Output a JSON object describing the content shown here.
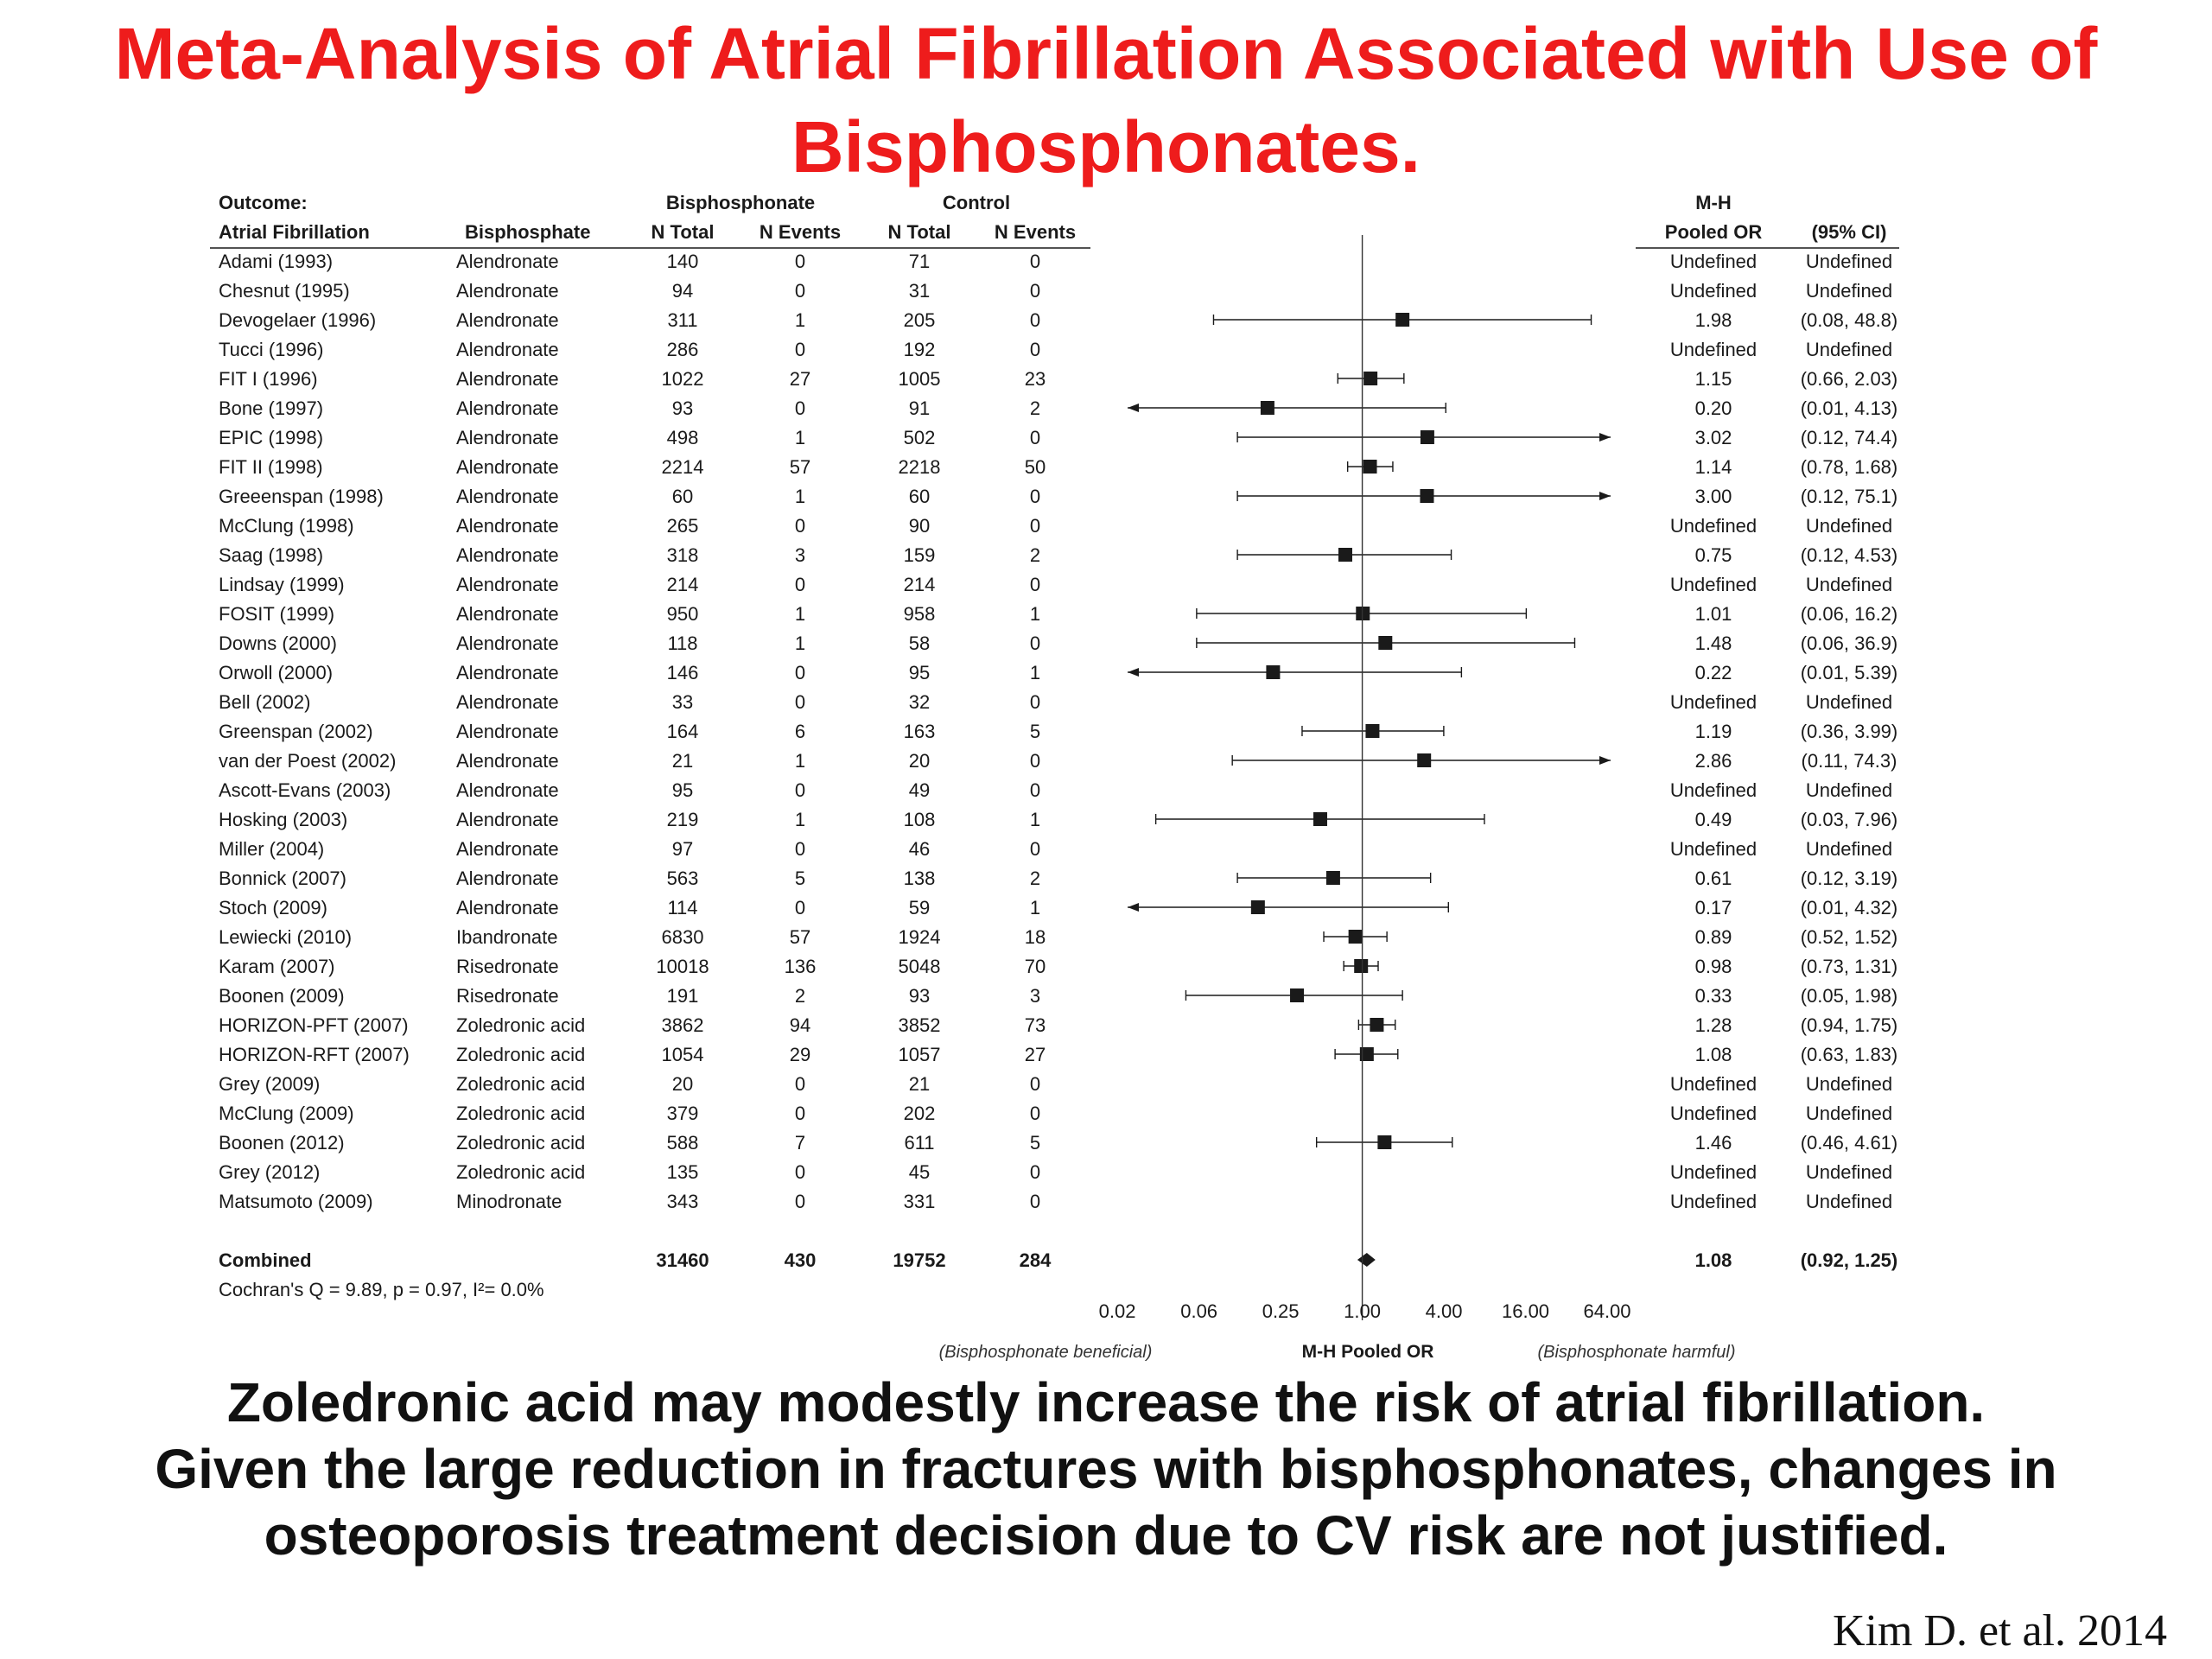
{
  "title": {
    "line1": "Meta-Analysis of Atrial Fibrillation Associated with Use of",
    "line2": "Bisphosphonates."
  },
  "note": {
    "line1": "Zoledronic acid may modestly increase the risk of atrial fibrillation.",
    "line2": "Given the large reduction in fractures with bisphosphonates, changes in",
    "line3": "osteoporosis treatment decision due to CV risk are not justified."
  },
  "citation": "Kim D. et al. 2014",
  "chart_data": {
    "type": "forest",
    "header": {
      "outcome_label": "Outcome:",
      "outcome": "Atrial Fibrillation",
      "col_bisphosphate": "Bisphosphate",
      "group_bis": "Bisphosphonate",
      "group_ctrl": "Control",
      "n_total": "N Total",
      "n_events": "N Events",
      "mh": "M-H",
      "pooled_or": "Pooled OR",
      "ci": "(95% CI)"
    },
    "x_scale": "log",
    "xlim": [
      0.02,
      64
    ],
    "x_ticks": [
      "0.02",
      "0.06",
      "0.25",
      "1.00",
      "4.00",
      "16.00",
      "64.00"
    ],
    "x_tick_values": [
      0.0156,
      0.0625,
      0.25,
      1,
      4,
      16,
      64
    ],
    "xlabel": "M-H Pooled OR",
    "left_annotation": "(Bisphosphonate beneficial)",
    "right_annotation": "(Bisphosphonate harmful)",
    "heterogeneity": "Cochran's Q = 9.89, p = 0.97, I²= 0.0%",
    "rows": [
      {
        "study": "Adami (1993)",
        "drug": "Alendronate",
        "bis_n": "140",
        "bis_e": "0",
        "ctl_n": "71",
        "ctl_e": "0",
        "or_text": "Undefined",
        "ci_text": "Undefined",
        "or": null,
        "lo": null,
        "hi": null
      },
      {
        "study": "Chesnut (1995)",
        "drug": "Alendronate",
        "bis_n": "94",
        "bis_e": "0",
        "ctl_n": "31",
        "ctl_e": "0",
        "or_text": "Undefined",
        "ci_text": "Undefined",
        "or": null,
        "lo": null,
        "hi": null
      },
      {
        "study": "Devogelaer (1996)",
        "drug": "Alendronate",
        "bis_n": "311",
        "bis_e": "1",
        "ctl_n": "205",
        "ctl_e": "0",
        "or_text": "1.98",
        "ci_text": "(0.08, 48.8)",
        "or": 1.98,
        "lo": 0.08,
        "hi": 48.8
      },
      {
        "study": "Tucci (1996)",
        "drug": "Alendronate",
        "bis_n": "286",
        "bis_e": "0",
        "ctl_n": "192",
        "ctl_e": "0",
        "or_text": "Undefined",
        "ci_text": "Undefined",
        "or": null,
        "lo": null,
        "hi": null
      },
      {
        "study": "FIT I (1996)",
        "drug": "Alendronate",
        "bis_n": "1022",
        "bis_e": "27",
        "ctl_n": "1005",
        "ctl_e": "23",
        "or_text": "1.15",
        "ci_text": "(0.66, 2.03)",
        "or": 1.15,
        "lo": 0.66,
        "hi": 2.03
      },
      {
        "study": "Bone (1997)",
        "drug": "Alendronate",
        "bis_n": "93",
        "bis_e": "0",
        "ctl_n": "91",
        "ctl_e": "2",
        "or_text": "0.20",
        "ci_text": "(0.01, 4.13)",
        "or": 0.2,
        "lo": 0.01,
        "hi": 4.13
      },
      {
        "study": "EPIC (1998)",
        "drug": "Alendronate",
        "bis_n": "498",
        "bis_e": "1",
        "ctl_n": "502",
        "ctl_e": "0",
        "or_text": "3.02",
        "ci_text": "(0.12, 74.4)",
        "or": 3.02,
        "lo": 0.12,
        "hi": 74.4
      },
      {
        "study": "FIT II (1998)",
        "drug": "Alendronate",
        "bis_n": "2214",
        "bis_e": "57",
        "ctl_n": "2218",
        "ctl_e": "50",
        "or_text": "1.14",
        "ci_text": "(0.78, 1.68)",
        "or": 1.14,
        "lo": 0.78,
        "hi": 1.68
      },
      {
        "study": "Greeenspan (1998)",
        "drug": "Alendronate",
        "bis_n": "60",
        "bis_e": "1",
        "ctl_n": "60",
        "ctl_e": "0",
        "or_text": "3.00",
        "ci_text": "(0.12, 75.1)",
        "or": 3.0,
        "lo": 0.12,
        "hi": 75.1
      },
      {
        "study": "McClung (1998)",
        "drug": "Alendronate",
        "bis_n": "265",
        "bis_e": "0",
        "ctl_n": "90",
        "ctl_e": "0",
        "or_text": "Undefined",
        "ci_text": "Undefined",
        "or": null,
        "lo": null,
        "hi": null
      },
      {
        "study": "Saag (1998)",
        "drug": "Alendronate",
        "bis_n": "318",
        "bis_e": "3",
        "ctl_n": "159",
        "ctl_e": "2",
        "or_text": "0.75",
        "ci_text": "(0.12, 4.53)",
        "or": 0.75,
        "lo": 0.12,
        "hi": 4.53
      },
      {
        "study": "Lindsay (1999)",
        "drug": "Alendronate",
        "bis_n": "214",
        "bis_e": "0",
        "ctl_n": "214",
        "ctl_e": "0",
        "or_text": "Undefined",
        "ci_text": "Undefined",
        "or": null,
        "lo": null,
        "hi": null
      },
      {
        "study": "FOSIT (1999)",
        "drug": "Alendronate",
        "bis_n": "950",
        "bis_e": "1",
        "ctl_n": "958",
        "ctl_e": "1",
        "or_text": "1.01",
        "ci_text": "(0.06, 16.2)",
        "or": 1.01,
        "lo": 0.06,
        "hi": 16.2
      },
      {
        "study": "Downs (2000)",
        "drug": "Alendronate",
        "bis_n": "118",
        "bis_e": "1",
        "ctl_n": "58",
        "ctl_e": "0",
        "or_text": "1.48",
        "ci_text": "(0.06, 36.9)",
        "or": 1.48,
        "lo": 0.06,
        "hi": 36.9
      },
      {
        "study": "Orwoll (2000)",
        "drug": "Alendronate",
        "bis_n": "146",
        "bis_e": "0",
        "ctl_n": "95",
        "ctl_e": "1",
        "or_text": "0.22",
        "ci_text": "(0.01, 5.39)",
        "or": 0.22,
        "lo": 0.01,
        "hi": 5.39
      },
      {
        "study": "Bell (2002)",
        "drug": "Alendronate",
        "bis_n": "33",
        "bis_e": "0",
        "ctl_n": "32",
        "ctl_e": "0",
        "or_text": "Undefined",
        "ci_text": "Undefined",
        "or": null,
        "lo": null,
        "hi": null
      },
      {
        "study": "Greenspan (2002)",
        "drug": "Alendronate",
        "bis_n": "164",
        "bis_e": "6",
        "ctl_n": "163",
        "ctl_e": "5",
        "or_text": "1.19",
        "ci_text": "(0.36, 3.99)",
        "or": 1.19,
        "lo": 0.36,
        "hi": 3.99
      },
      {
        "study": "van der Poest (2002)",
        "drug": "Alendronate",
        "bis_n": "21",
        "bis_e": "1",
        "ctl_n": "20",
        "ctl_e": "0",
        "or_text": "2.86",
        "ci_text": "(0.11, 74.3)",
        "or": 2.86,
        "lo": 0.11,
        "hi": 74.3
      },
      {
        "study": "Ascott-Evans (2003)",
        "drug": "Alendronate",
        "bis_n": "95",
        "bis_e": "0",
        "ctl_n": "49",
        "ctl_e": "0",
        "or_text": "Undefined",
        "ci_text": "Undefined",
        "or": null,
        "lo": null,
        "hi": null
      },
      {
        "study": "Hosking (2003)",
        "drug": "Alendronate",
        "bis_n": "219",
        "bis_e": "1",
        "ctl_n": "108",
        "ctl_e": "1",
        "or_text": "0.49",
        "ci_text": "(0.03, 7.96)",
        "or": 0.49,
        "lo": 0.03,
        "hi": 7.96
      },
      {
        "study": "Miller (2004)",
        "drug": "Alendronate",
        "bis_n": "97",
        "bis_e": "0",
        "ctl_n": "46",
        "ctl_e": "0",
        "or_text": "Undefined",
        "ci_text": "Undefined",
        "or": null,
        "lo": null,
        "hi": null
      },
      {
        "study": "Bonnick (2007)",
        "drug": "Alendronate",
        "bis_n": "563",
        "bis_e": "5",
        "ctl_n": "138",
        "ctl_e": "2",
        "or_text": "0.61",
        "ci_text": "(0.12, 3.19)",
        "or": 0.61,
        "lo": 0.12,
        "hi": 3.19
      },
      {
        "study": "Stoch (2009)",
        "drug": "Alendronate",
        "bis_n": "114",
        "bis_e": "0",
        "ctl_n": "59",
        "ctl_e": "1",
        "or_text": "0.17",
        "ci_text": "(0.01, 4.32)",
        "or": 0.17,
        "lo": 0.01,
        "hi": 4.32
      },
      {
        "study": "Lewiecki (2010)",
        "drug": "Ibandronate",
        "bis_n": "6830",
        "bis_e": "57",
        "ctl_n": "1924",
        "ctl_e": "18",
        "or_text": "0.89",
        "ci_text": "(0.52, 1.52)",
        "or": 0.89,
        "lo": 0.52,
        "hi": 1.52
      },
      {
        "study": "Karam (2007)",
        "drug": "Risedronate",
        "bis_n": "10018",
        "bis_e": "136",
        "ctl_n": "5048",
        "ctl_e": "70",
        "or_text": "0.98",
        "ci_text": "(0.73, 1.31)",
        "or": 0.98,
        "lo": 0.73,
        "hi": 1.31
      },
      {
        "study": "Boonen (2009)",
        "drug": "Risedronate",
        "bis_n": "191",
        "bis_e": "2",
        "ctl_n": "93",
        "ctl_e": "3",
        "or_text": "0.33",
        "ci_text": "(0.05, 1.98)",
        "or": 0.33,
        "lo": 0.05,
        "hi": 1.98
      },
      {
        "study": "HORIZON-PFT (2007)",
        "drug": "Zoledronic acid",
        "bis_n": "3862",
        "bis_e": "94",
        "ctl_n": "3852",
        "ctl_e": "73",
        "or_text": "1.28",
        "ci_text": "(0.94, 1.75)",
        "or": 1.28,
        "lo": 0.94,
        "hi": 1.75
      },
      {
        "study": "HORIZON-RFT (2007)",
        "drug": "Zoledronic acid",
        "bis_n": "1054",
        "bis_e": "29",
        "ctl_n": "1057",
        "ctl_e": "27",
        "or_text": "1.08",
        "ci_text": "(0.63, 1.83)",
        "or": 1.08,
        "lo": 0.63,
        "hi": 1.83
      },
      {
        "study": "Grey (2009)",
        "drug": "Zoledronic acid",
        "bis_n": "20",
        "bis_e": "0",
        "ctl_n": "21",
        "ctl_e": "0",
        "or_text": "Undefined",
        "ci_text": "Undefined",
        "or": null,
        "lo": null,
        "hi": null
      },
      {
        "study": "McClung (2009)",
        "drug": "Zoledronic acid",
        "bis_n": "379",
        "bis_e": "0",
        "ctl_n": "202",
        "ctl_e": "0",
        "or_text": "Undefined",
        "ci_text": "Undefined",
        "or": null,
        "lo": null,
        "hi": null
      },
      {
        "study": "Boonen (2012)",
        "drug": "Zoledronic acid",
        "bis_n": "588",
        "bis_e": "7",
        "ctl_n": "611",
        "ctl_e": "5",
        "or_text": "1.46",
        "ci_text": "(0.46, 4.61)",
        "or": 1.46,
        "lo": 0.46,
        "hi": 4.61
      },
      {
        "study": "Grey (2012)",
        "drug": "Zoledronic acid",
        "bis_n": "135",
        "bis_e": "0",
        "ctl_n": "45",
        "ctl_e": "0",
        "or_text": "Undefined",
        "ci_text": "Undefined",
        "or": null,
        "lo": null,
        "hi": null
      },
      {
        "study": "Matsumoto (2009)",
        "drug": "Minodronate",
        "bis_n": "343",
        "bis_e": "0",
        "ctl_n": "331",
        "ctl_e": "0",
        "or_text": "Undefined",
        "ci_text": "Undefined",
        "or": null,
        "lo": null,
        "hi": null
      }
    ],
    "combined": {
      "study": "Combined",
      "bis_n": "31460",
      "bis_e": "430",
      "ctl_n": "19752",
      "ctl_e": "284",
      "or_text": "1.08",
      "ci_text": "(0.92, 1.25)",
      "or": 1.08,
      "lo": 0.92,
      "hi": 1.25
    }
  }
}
